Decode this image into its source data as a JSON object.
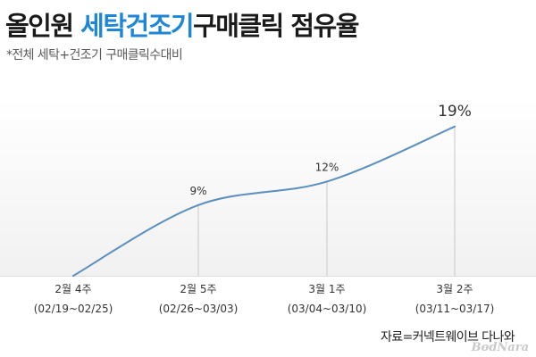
{
  "title": {
    "part1": "올인원",
    "accent": "세탁건조기",
    "part2": "구매클릭 점유율"
  },
  "subtitle": "*전체 세탁+건조기 구매클릭수대비",
  "source": "자료=커넥트웨이브 다나와",
  "watermark": "BodNara",
  "colors": {
    "accent": "#1e86d4",
    "line": "#5a8fbf",
    "guide": "#c8c8c8"
  },
  "chart_data": {
    "type": "line",
    "categories": [
      {
        "label": "2월 4주",
        "range": "(02/19~02/25)"
      },
      {
        "label": "2월 5주",
        "range": "(02/26~03/03)"
      },
      {
        "label": "3월 1주",
        "range": "(03/04~03/10)"
      },
      {
        "label": "3월 2주",
        "range": "(03/11~03/17)"
      }
    ],
    "series": [
      {
        "values": [
          0,
          9,
          12,
          19
        ],
        "value_labels": [
          "",
          "9%",
          "12%",
          "19%"
        ]
      }
    ],
    "unit": "%",
    "ylim": [
      0,
      20
    ],
    "grid": false,
    "legend": "none"
  }
}
